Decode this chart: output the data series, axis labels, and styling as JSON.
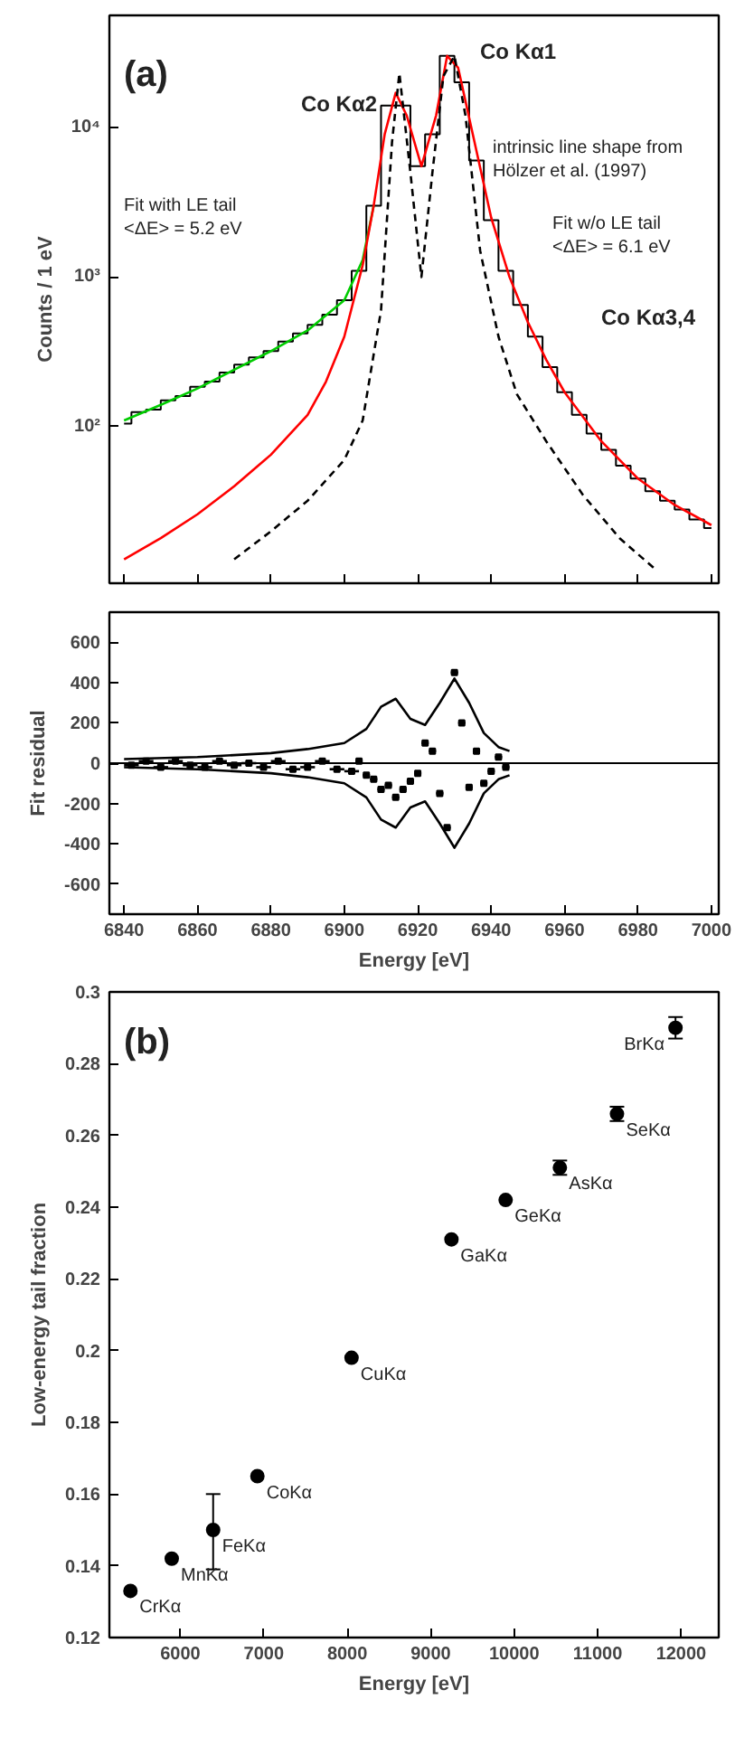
{
  "chart_data": [
    {
      "type": "line",
      "log": "y",
      "grid": false,
      "tick_labels": "y",
      "ylabel": "Counts / 1 eV",
      "xlim": [
        6836,
        7002
      ],
      "ylim": [
        9,
        56000
      ],
      "xticks": [
        6840,
        6860,
        6880,
        6900,
        6920,
        6940,
        6960,
        6980,
        7000
      ],
      "yticks": [
        {
          "value": 100,
          "label": "10²"
        },
        {
          "value": 1000,
          "label": "10³"
        },
        {
          "value": 10000,
          "label": "10⁴"
        }
      ],
      "annotations": [
        "(a)",
        "Co Kα2",
        "Co Kα1",
        "Co Kα3,4",
        "Fit with LE tail\n<ΔE> = 5.2 eV",
        "Fit w/o LE tail\n<ΔE> = 6.1 eV",
        "intrinsic line shape from\nHölzer et al. (1997)"
      ],
      "series": [
        {
          "type": "step",
          "color": "#000000",
          "x": [
            6840,
            6844,
            6848,
            6852,
            6856,
            6860,
            6864,
            6868,
            6872,
            6876,
            6880,
            6884,
            6888,
            6892,
            6896,
            6900,
            6904,
            6908,
            6912,
            6916,
            6920,
            6924,
            6928,
            6932,
            6936,
            6940,
            6944,
            6948,
            6952,
            6956,
            6960,
            6964,
            6968,
            6972,
            6976,
            6980,
            6984,
            6988,
            6992,
            6996,
            7000
          ],
          "values": [
            105,
            125,
            130,
            150,
            160,
            185,
            200,
            230,
            260,
            290,
            320,
            370,
            420,
            480,
            560,
            700,
            1100,
            3000,
            14000,
            14000,
            5500,
            9000,
            30000,
            20000,
            6000,
            2400,
            1100,
            650,
            400,
            250,
            170,
            120,
            90,
            70,
            55,
            45,
            37,
            32,
            28,
            24,
            21
          ]
        },
        {
          "type": "line",
          "color": "#00cc00",
          "x": [
            6840,
            6850,
            6860,
            6870,
            6880,
            6890,
            6900,
            6905,
            6908
          ],
          "values": [
            110,
            140,
            180,
            240,
            320,
            440,
            700,
            1300,
            3000
          ]
        },
        {
          "type": "line",
          "color": "#ff0000",
          "x": [
            6840,
            6850,
            6860,
            6870,
            6880,
            6890,
            6895,
            6900,
            6905,
            6908,
            6911,
            6914,
            6917,
            6921,
            6925,
            6928,
            6931,
            6935,
            6940,
            6945,
            6950,
            6955,
            6960,
            6970,
            6980,
            6990,
            7000
          ],
          "values": [
            13,
            18,
            26,
            40,
            65,
            120,
            200,
            400,
            1200,
            3000,
            9000,
            17000,
            12000,
            5500,
            12000,
            30000,
            25000,
            9000,
            2500,
            1000,
            500,
            280,
            170,
            80,
            45,
            30,
            22
          ]
        },
        {
          "type": "line",
          "color": "#000000",
          "line_style": "dashed",
          "x": [
            6870,
            6880,
            6890,
            6900,
            6905,
            6910,
            6913,
            6915,
            6918,
            6921,
            6924,
            6927,
            6930,
            6933,
            6937,
            6942,
            6947,
            6955,
            6965,
            6975,
            6985
          ],
          "values": [
            13,
            20,
            32,
            60,
            110,
            600,
            8000,
            23000,
            5000,
            1000,
            5000,
            22000,
            30000,
            12000,
            1500,
            400,
            165,
            80,
            35,
            18,
            11
          ]
        }
      ]
    },
    {
      "type": "scatter",
      "grid": false,
      "xlabel": "Energy [eV]",
      "ylabel": "Fit residual",
      "xlim": [
        6836,
        7002
      ],
      "ylim": [
        -750,
        750
      ],
      "xticks": [
        6840,
        6860,
        6880,
        6900,
        6920,
        6940,
        6960,
        6980,
        7000
      ],
      "yticks": [
        -600,
        -400,
        -200,
        0,
        200,
        400,
        600
      ],
      "ref_lines": [
        {
          "axis": "y",
          "value": 0,
          "color": "#000000"
        }
      ],
      "series": [
        {
          "type": "scatter",
          "marker": "square",
          "color": "#000000",
          "x": [
            6842,
            6846,
            6850,
            6854,
            6858,
            6862,
            6866,
            6870,
            6874,
            6878,
            6882,
            6886,
            6890,
            6894,
            6898,
            6902,
            6904,
            6906,
            6908,
            6910,
            6912,
            6914,
            6916,
            6918,
            6920,
            6922,
            6924,
            6926,
            6928,
            6930,
            6932,
            6934,
            6936,
            6938,
            6940,
            6942,
            6944
          ],
          "values": [
            -10,
            10,
            -20,
            10,
            -10,
            -20,
            10,
            -10,
            0,
            -20,
            10,
            -30,
            -20,
            10,
            -30,
            -40,
            10,
            -60,
            -80,
            -130,
            -110,
            -170,
            -130,
            -90,
            -50,
            100,
            60,
            -150,
            -320,
            450,
            200,
            -120,
            60,
            -100,
            -40,
            30,
            -20
          ],
          "xerrors": [
            2,
            2,
            2,
            2,
            2,
            2,
            2,
            2,
            2,
            2,
            2,
            2,
            2,
            2,
            2,
            2,
            1,
            1,
            1,
            1,
            1,
            1,
            1,
            1,
            1,
            1,
            1,
            1,
            1,
            1,
            1,
            1,
            1,
            1,
            1,
            1,
            1
          ]
        },
        {
          "type": "line",
          "color": "#000000",
          "x": [
            6840,
            6860,
            6880,
            6890,
            6900,
            6906,
            6910,
            6914,
            6918,
            6922,
            6926,
            6930,
            6934,
            6938,
            6942,
            6945
          ],
          "values": [
            20,
            30,
            50,
            70,
            100,
            170,
            280,
            320,
            220,
            190,
            300,
            420,
            300,
            150,
            80,
            60
          ]
        },
        {
          "type": "line",
          "color": "#000000",
          "x": [
            6840,
            6860,
            6880,
            6890,
            6900,
            6906,
            6910,
            6914,
            6918,
            6922,
            6926,
            6930,
            6934,
            6938,
            6942,
            6945
          ],
          "values": [
            -20,
            -30,
            -50,
            -70,
            -100,
            -170,
            -280,
            -320,
            -220,
            -190,
            -300,
            -420,
            -300,
            -150,
            -80,
            -60
          ]
        }
      ]
    },
    {
      "type": "scatter",
      "marker": "circle",
      "grid": false,
      "xlabel": "Energy [eV]",
      "ylabel": "Low-energy tail fraction",
      "xlim": [
        5150,
        12450
      ],
      "ylim": [
        0.12,
        0.3
      ],
      "xticks": [
        6000,
        7000,
        8000,
        9000,
        10000,
        11000,
        12000
      ],
      "yticks": [
        0.12,
        0.14,
        0.16,
        0.18,
        0.2,
        0.22,
        0.24,
        0.26,
        0.28,
        0.3
      ],
      "annotations": [
        "(b)",
        {
          "text": "CrKα",
          "x": 5402,
          "y": 0.133
        },
        {
          "text": "MnKα",
          "x": 5897,
          "y": 0.142
        },
        {
          "text": "FeKα",
          "x": 6393,
          "y": 0.15
        },
        {
          "text": "CoKα",
          "x": 6923,
          "y": 0.165
        },
        {
          "text": "CuKα",
          "x": 8051,
          "y": 0.198
        },
        {
          "text": "GaKα",
          "x": 9248,
          "y": 0.231
        },
        {
          "text": "GeKα",
          "x": 9897,
          "y": 0.242
        },
        {
          "text": "AsKα",
          "x": 10547,
          "y": 0.251
        },
        {
          "text": "SeKα",
          "x": 11231,
          "y": 0.266
        },
        {
          "text": "BrKα",
          "x": 11932,
          "y": 0.29
        }
      ],
      "series": [
        {
          "color": "#000000",
          "x": [
            5402,
            5897,
            6393,
            6923,
            8051,
            9248,
            9897,
            10547,
            11231,
            11932
          ],
          "values": [
            0.133,
            0.142,
            0.15,
            0.165,
            0.198,
            0.231,
            0.242,
            0.251,
            0.266,
            0.29
          ],
          "errors": [
            null,
            null,
            [
              0.139,
              0.16
            ],
            null,
            null,
            null,
            null,
            0.002,
            0.002,
            0.003
          ]
        }
      ]
    }
  ]
}
